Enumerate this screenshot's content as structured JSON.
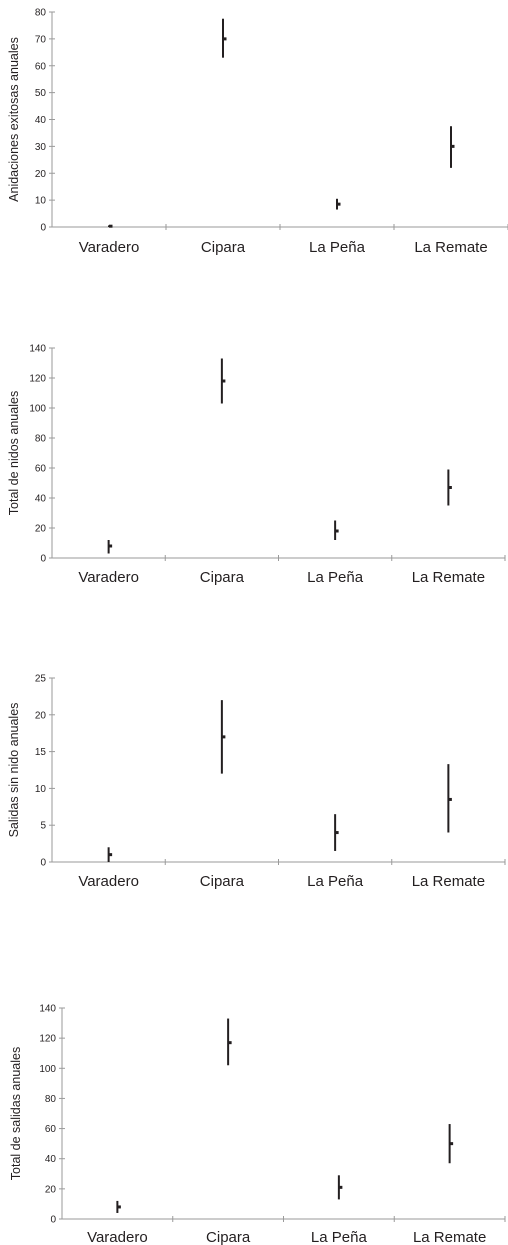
{
  "chart_data": [
    {
      "type": "range",
      "ylabel": "Anidaciones exitosas anuales",
      "ylim": [
        0,
        80
      ],
      "yticks": [
        0,
        10,
        20,
        30,
        40,
        50,
        60,
        70,
        80
      ],
      "categories": [
        "Varadero",
        "Cipara",
        "La Peña",
        "La Remate"
      ],
      "mean": [
        0.3,
        70,
        8.5,
        30
      ],
      "low": [
        0,
        63,
        6.5,
        22
      ],
      "high": [
        0.6,
        77.5,
        10.5,
        37.5
      ],
      "grid": false
    },
    {
      "type": "range",
      "ylabel": "Total de nidos anuales",
      "ylim": [
        0,
        140
      ],
      "yticks": [
        0,
        20,
        40,
        60,
        80,
        100,
        120,
        140
      ],
      "categories": [
        "Varadero",
        "Cipara",
        "La Peña",
        "La Remate"
      ],
      "mean": [
        8,
        118,
        18,
        47
      ],
      "low": [
        3,
        103,
        12,
        35
      ],
      "high": [
        12,
        133,
        25,
        59
      ],
      "grid": false
    },
    {
      "type": "range",
      "ylabel": "Salidas sin nido anuales",
      "ylim": [
        0,
        25
      ],
      "yticks": [
        0,
        5,
        10,
        15,
        20,
        25
      ],
      "categories": [
        "Varadero",
        "Cipara",
        "La Peña",
        "La Remate"
      ],
      "mean": [
        1,
        17,
        4,
        8.5
      ],
      "low": [
        0,
        12,
        1.5,
        4
      ],
      "high": [
        2,
        22,
        6.5,
        13.3
      ],
      "grid": false
    },
    {
      "type": "range",
      "ylabel": "Total de salidas anuales",
      "ylim": [
        0,
        140
      ],
      "yticks": [
        0,
        20,
        40,
        60,
        80,
        100,
        120,
        140
      ],
      "categories": [
        "Varadero",
        "Cipara",
        "La Peña",
        "La Remate"
      ],
      "mean": [
        8,
        117,
        21,
        50
      ],
      "low": [
        4,
        102,
        13,
        37
      ],
      "high": [
        12,
        133,
        29,
        63
      ],
      "grid": false
    }
  ]
}
